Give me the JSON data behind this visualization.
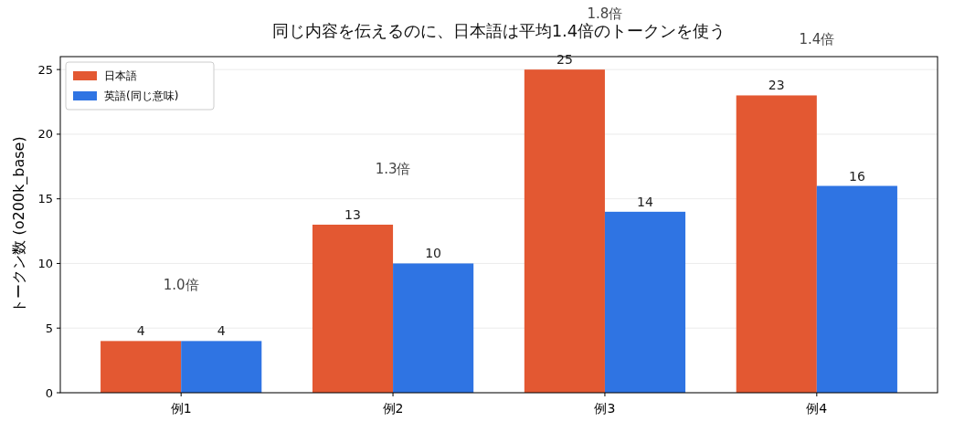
{
  "chart_data": {
    "type": "bar",
    "title": "同じ内容を伝えるのに、日本語は平均1.4倍のトークンを使う",
    "ylabel": "トークン数 (o200k_base)",
    "categories": [
      "例1",
      "例2",
      "例3",
      "例4"
    ],
    "series": [
      {
        "name": "日本語",
        "color": "#e35832",
        "values": [
          4,
          13,
          25,
          23
        ]
      },
      {
        "name": "英語(同じ意味)",
        "color": "#2f74e3",
        "values": [
          4,
          10,
          14,
          16
        ]
      }
    ],
    "ylim": [
      0,
      26
    ],
    "yticks": [
      0,
      5,
      10,
      15,
      20,
      25
    ],
    "grid": "y",
    "legend": "top left",
    "data_labels": true,
    "annotations": [
      "1.0倍",
      "1.3倍",
      "1.8倍",
      "1.4倍"
    ]
  }
}
